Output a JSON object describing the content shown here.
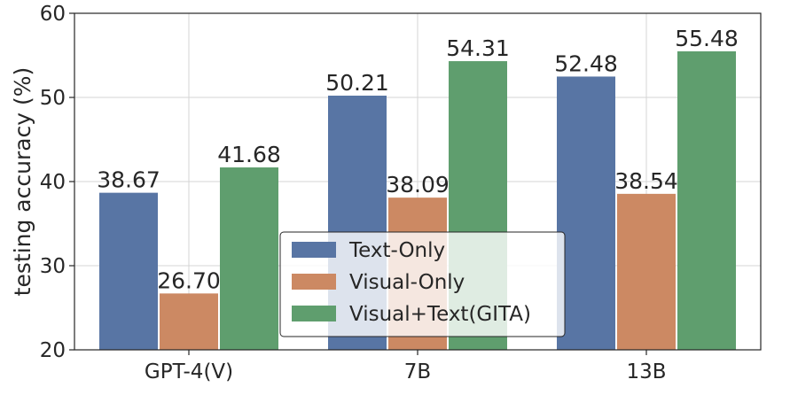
{
  "chart_data": {
    "type": "bar",
    "title": "",
    "xlabel": "",
    "ylabel": "testing accuracy (%)",
    "categories": [
      "GPT-4(V)",
      "7B",
      "13B"
    ],
    "series": [
      {
        "name": "Text-Only",
        "color": "#5875a4",
        "values": [
          38.67,
          50.21,
          52.48
        ],
        "labels": [
          "38.67",
          "50.21",
          "52.48"
        ]
      },
      {
        "name": "Visual-Only",
        "color": "#cc8963",
        "values": [
          26.7,
          38.09,
          38.54
        ],
        "labels": [
          "26.70",
          "38.09",
          "38.54"
        ]
      },
      {
        "name": "Visual+Text(GITA)",
        "color": "#5f9e6e",
        "values": [
          41.68,
          54.31,
          55.48
        ],
        "labels": [
          "41.68",
          "54.31",
          "55.48"
        ]
      }
    ],
    "ylim": [
      20,
      60
    ],
    "yticks": [
      "20",
      "30",
      "40",
      "50",
      "60"
    ],
    "grid": true,
    "legend_position": "lower-center"
  }
}
